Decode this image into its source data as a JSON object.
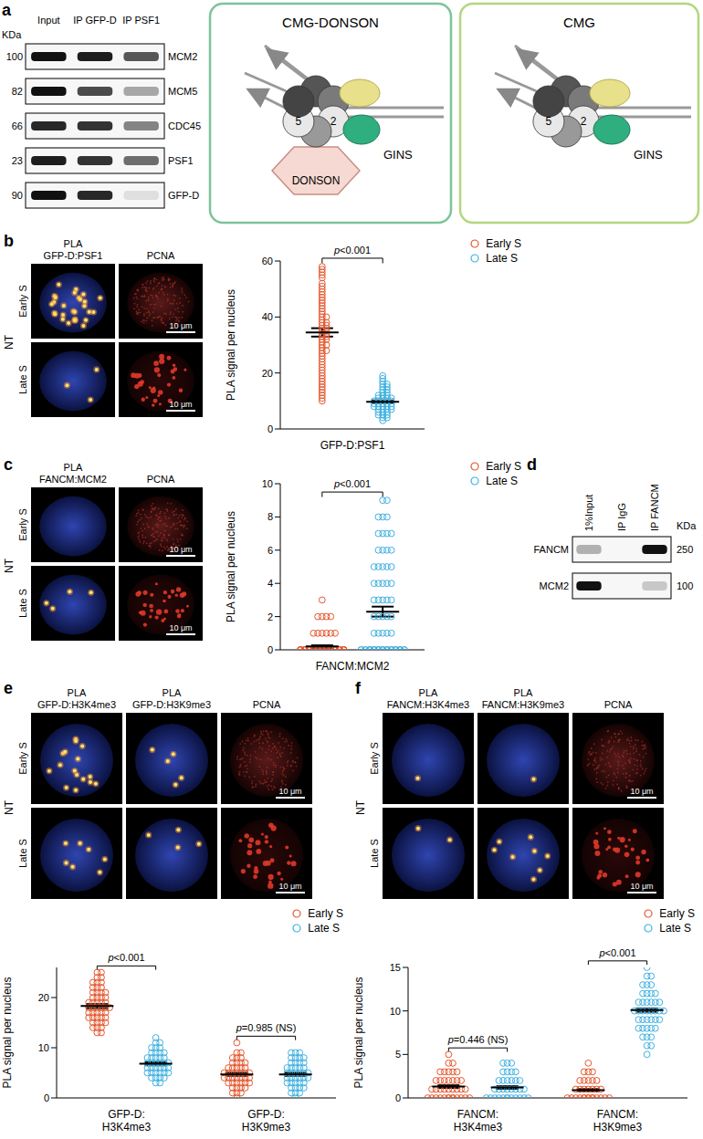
{
  "panel_a": {
    "label": "a",
    "blot": {
      "kda_label": "KDa",
      "lanes": [
        "Input",
        "IP GFP-D",
        "IP PSF1"
      ],
      "rows": [
        {
          "protein": "MCM2",
          "kda": 100,
          "intensities": [
            1,
            0.95,
            0.7
          ]
        },
        {
          "protein": "MCM5",
          "kda": 82,
          "intensities": [
            1,
            0.75,
            0.35
          ]
        },
        {
          "protein": "CDC45",
          "kda": 66,
          "intensities": [
            0.9,
            0.85,
            0.5
          ]
        },
        {
          "protein": "PSF1",
          "kda": 23,
          "intensities": [
            0.95,
            0.85,
            0.6
          ]
        },
        {
          "protein": "GFP-D",
          "kda": 90,
          "intensities": [
            1,
            0.9,
            0.1
          ]
        }
      ]
    },
    "diagrams": [
      {
        "title": "CMG-DONSON",
        "mcm_labels": [
          "2",
          "5"
        ],
        "gins": "GINS",
        "donson": "DONSON"
      },
      {
        "title": "CMG",
        "mcm_labels": [
          "2",
          "5"
        ],
        "gins": "GINS"
      }
    ]
  },
  "panel_d": {
    "label": "d",
    "kda_label": "KDa",
    "lanes": [
      "1%Input",
      "IP IgG",
      "IP FANCM"
    ],
    "rows": [
      {
        "protein": "FANCM",
        "kda": 250,
        "intensities": [
          0.3,
          0,
          1
        ]
      },
      {
        "protein": "MCM2",
        "kda": 100,
        "intensities": [
          1,
          0,
          0.2
        ]
      }
    ]
  },
  "image_panels": [
    {
      "label": "b",
      "condition": "NT",
      "rows": [
        "Early S",
        "Late S"
      ],
      "columns": [
        [
          "PLA",
          "GFP-D:PSF1"
        ],
        [
          "PCNA"
        ]
      ],
      "scale_bar": "10 μm"
    },
    {
      "label": "c",
      "condition": "NT",
      "rows": [
        "Early S",
        "Late S"
      ],
      "columns": [
        [
          "PLA",
          "FANCM:MCM2"
        ],
        [
          "PCNA"
        ]
      ],
      "scale_bar": "10 μm"
    },
    {
      "label": "e",
      "condition": "NT",
      "rows": [
        "Early S",
        "Late S"
      ],
      "columns": [
        [
          "PLA",
          "GFP-D:H3K4me3"
        ],
        [
          "PLA",
          "GFP-D:H3K9me3"
        ],
        [
          "PCNA"
        ]
      ],
      "scale_bar": "10 μm"
    },
    {
      "label": "f",
      "condition": "NT",
      "rows": [
        "Early S",
        "Late S"
      ],
      "columns": [
        [
          "PLA",
          "FANCM:H3K4me3"
        ],
        [
          "PLA",
          "FANCM:H3K9me3"
        ],
        [
          "PCNA"
        ]
      ],
      "scale_bar": "10 μm"
    }
  ],
  "chart_data": [
    {
      "type": "scatter",
      "ylabel": "PLA signal per nucleus",
      "categories": [
        "GFP-D:PSF1"
      ],
      "ylim": [
        0,
        60
      ],
      "yticks": [
        0,
        20,
        40,
        60
      ],
      "legend": "top right",
      "annotations": [
        "p<0.001"
      ],
      "series": [
        {
          "name": "Early S",
          "color": "#e4572e",
          "marker": "open circle",
          "values": [
            [
              58,
              57,
              56,
              55,
              54,
              52,
              51,
              50,
              49,
              48,
              47,
              46,
              45,
              44,
              43,
              42,
              41,
              40,
              40,
              39,
              38,
              38,
              37,
              37,
              36,
              36,
              35,
              35,
              34,
              34,
              33,
              33,
              32,
              32,
              31,
              30,
              30,
              29,
              28,
              28,
              27,
              26,
              25,
              24,
              23,
              22,
              21,
              20,
              19,
              18,
              17,
              16,
              15,
              14,
              13,
              12,
              11,
              10
            ]
          ],
          "mean": [
            34.5
          ],
          "sem": [
            1.5
          ]
        },
        {
          "name": "Late S",
          "color": "#3fb1e0",
          "marker": "open circle",
          "values": [
            [
              19,
              18,
              17,
              16,
              16,
              15,
              15,
              14,
              14,
              13,
              13,
              12,
              12,
              12,
              11,
              11,
              11,
              11,
              10,
              10,
              10,
              10,
              10,
              9,
              9,
              9,
              9,
              9,
              8,
              8,
              8,
              8,
              8,
              7,
              7,
              7,
              7,
              6,
              6,
              6,
              5,
              5,
              5,
              4,
              4,
              3
            ]
          ],
          "mean": [
            9.7
          ],
          "sem": [
            0.5
          ]
        }
      ]
    },
    {
      "type": "scatter",
      "ylabel": "PLA signal per nucleus",
      "categories": [
        "FANCM:MCM2"
      ],
      "ylim": [
        0,
        10
      ],
      "yticks": [
        0,
        2,
        4,
        6,
        8,
        10
      ],
      "legend": "top right",
      "annotations": [
        "p<0.001"
      ],
      "series": [
        {
          "name": "Early S",
          "color": "#e4572e",
          "marker": "open circle",
          "values": [
            [
              3,
              2,
              2,
              2,
              2,
              1,
              1,
              1,
              1,
              1,
              1,
              0,
              0,
              0,
              0,
              0,
              0,
              0,
              0,
              0,
              0,
              0,
              0,
              0,
              0,
              0,
              0,
              0,
              0,
              0,
              0,
              0,
              0,
              0,
              0,
              0,
              0,
              0,
              0,
              0,
              0,
              0,
              0,
              0,
              0,
              0,
              0,
              0,
              0,
              0,
              0,
              0,
              0,
              0,
              0,
              0,
              0,
              0,
              0,
              0,
              0
            ]
          ],
          "mean": [
            0.2
          ],
          "sem": [
            0.07
          ]
        },
        {
          "name": "Late S",
          "color": "#3fb1e0",
          "marker": "open circle",
          "values": [
            [
              9,
              9,
              8,
              8,
              8,
              7,
              7,
              7,
              7,
              6,
              6,
              6,
              6,
              5,
              5,
              5,
              5,
              5,
              4,
              4,
              4,
              4,
              4,
              3,
              3,
              3,
              3,
              3,
              2,
              2,
              2,
              2,
              2,
              1,
              1,
              1,
              1,
              1,
              0,
              0,
              0,
              0,
              0,
              0,
              0,
              0,
              0,
              0,
              0,
              0,
              0,
              0,
              0,
              0,
              0,
              0,
              0,
              0,
              0,
              0,
              0,
              0,
              0,
              0,
              0,
              0,
              0,
              0
            ]
          ],
          "mean": [
            2.3
          ],
          "sem": [
            0.3
          ]
        }
      ]
    },
    {
      "type": "scatter",
      "ylabel": "PLA signal per nucleus",
      "categories": [
        "GFP-D:H3K4me3",
        "GFP-D:H3K9me3"
      ],
      "ylim": [
        0,
        26
      ],
      "yticks": [
        0,
        10,
        20
      ],
      "legend": "top right",
      "annotations": [
        "p<0.001",
        "p=0.985 (NS)"
      ],
      "series": [
        {
          "name": "Early S",
          "color": "#e4572e",
          "marker": "open circle",
          "values": [
            [
              25,
              25,
              24,
              24,
              23,
              23,
              23,
              22,
              22,
              22,
              21,
              21,
              21,
              21,
              20,
              20,
              20,
              20,
              19,
              19,
              19,
              19,
              19,
              18,
              18,
              18,
              18,
              18,
              18,
              17,
              17,
              17,
              17,
              17,
              16,
              16,
              16,
              16,
              16,
              15,
              15,
              15,
              15,
              14,
              14,
              14,
              13,
              13
            ],
            [
              11,
              9,
              9,
              8,
              8,
              8,
              7,
              7,
              7,
              7,
              6,
              6,
              6,
              6,
              6,
              5,
              5,
              5,
              5,
              5,
              5,
              5,
              4,
              4,
              4,
              4,
              4,
              4,
              4,
              3,
              3,
              3,
              3,
              3,
              3,
              2,
              2,
              2,
              2,
              1,
              1,
              1,
              0
            ]
          ],
          "mean": [
            18.3,
            4.7
          ],
          "sem": [
            0.4,
            0.3
          ]
        },
        {
          "name": "Late S",
          "color": "#3fb1e0",
          "marker": "open circle",
          "values": [
            [
              12,
              11,
              11,
              10,
              10,
              10,
              9,
              9,
              9,
              9,
              8,
              8,
              8,
              8,
              8,
              7,
              7,
              7,
              7,
              7,
              7,
              6,
              6,
              6,
              6,
              6,
              6,
              5,
              5,
              5,
              5,
              5,
              5,
              4,
              4,
              4,
              4,
              3,
              3
            ],
            [
              9,
              9,
              9,
              8,
              8,
              8,
              8,
              7,
              7,
              7,
              7,
              6,
              6,
              6,
              6,
              6,
              5,
              5,
              5,
              5,
              5,
              5,
              4,
              4,
              4,
              4,
              4,
              4,
              3,
              3,
              3,
              3,
              3,
              2,
              2,
              2,
              2,
              1,
              1,
              1,
              0
            ]
          ],
          "mean": [
            6.8,
            4.7
          ],
          "sem": [
            0.3,
            0.3
          ]
        }
      ]
    },
    {
      "type": "scatter",
      "ylabel": "PLA signal per nucleus",
      "categories": [
        "FANCM:H3K4me3",
        "FANCM:H3K9me3"
      ],
      "ylim": [
        0,
        15
      ],
      "yticks": [
        0,
        5,
        10,
        15
      ],
      "legend": "top right",
      "annotations": [
        "p=0.446 (NS)",
        "p<0.001"
      ],
      "series": [
        {
          "name": "Early S",
          "color": "#e4572e",
          "marker": "open circle",
          "values": [
            [
              5,
              4,
              4,
              3,
              3,
              3,
              3,
              3,
              2,
              2,
              2,
              2,
              2,
              2,
              2,
              1,
              1,
              1,
              1,
              1,
              1,
              1,
              1,
              1,
              0,
              0,
              0,
              0,
              0,
              0,
              0,
              0,
              0,
              0,
              0,
              0,
              0
            ],
            [
              4,
              3,
              3,
              3,
              2,
              2,
              2,
              2,
              2,
              1,
              1,
              1,
              1,
              1,
              1,
              1,
              0,
              0,
              0,
              0,
              0,
              0,
              0,
              0,
              0,
              0,
              0,
              0,
              0,
              0
            ]
          ],
          "mean": [
            1.3,
            0.9
          ],
          "sem": [
            0.15,
            0.12
          ]
        },
        {
          "name": "Late S",
          "color": "#3fb1e0",
          "marker": "open circle",
          "values": [
            [
              4,
              4,
              4,
              3,
              3,
              3,
              3,
              2,
              2,
              2,
              2,
              2,
              2,
              1,
              1,
              1,
              1,
              1,
              1,
              1,
              1,
              0,
              0,
              0,
              0,
              0,
              0,
              0,
              0,
              0,
              0,
              0,
              0
            ],
            [
              15,
              14,
              14,
              13,
              13,
              13,
              12,
              12,
              12,
              12,
              11,
              11,
              11,
              11,
              11,
              11,
              10,
              10,
              10,
              10,
              10,
              10,
              10,
              10,
              9,
              9,
              9,
              9,
              9,
              9,
              8,
              8,
              8,
              8,
              8,
              7,
              7,
              7,
              6,
              6,
              5
            ]
          ],
          "mean": [
            1.2,
            10.1
          ],
          "sem": [
            0.15,
            0.2
          ]
        }
      ]
    }
  ]
}
